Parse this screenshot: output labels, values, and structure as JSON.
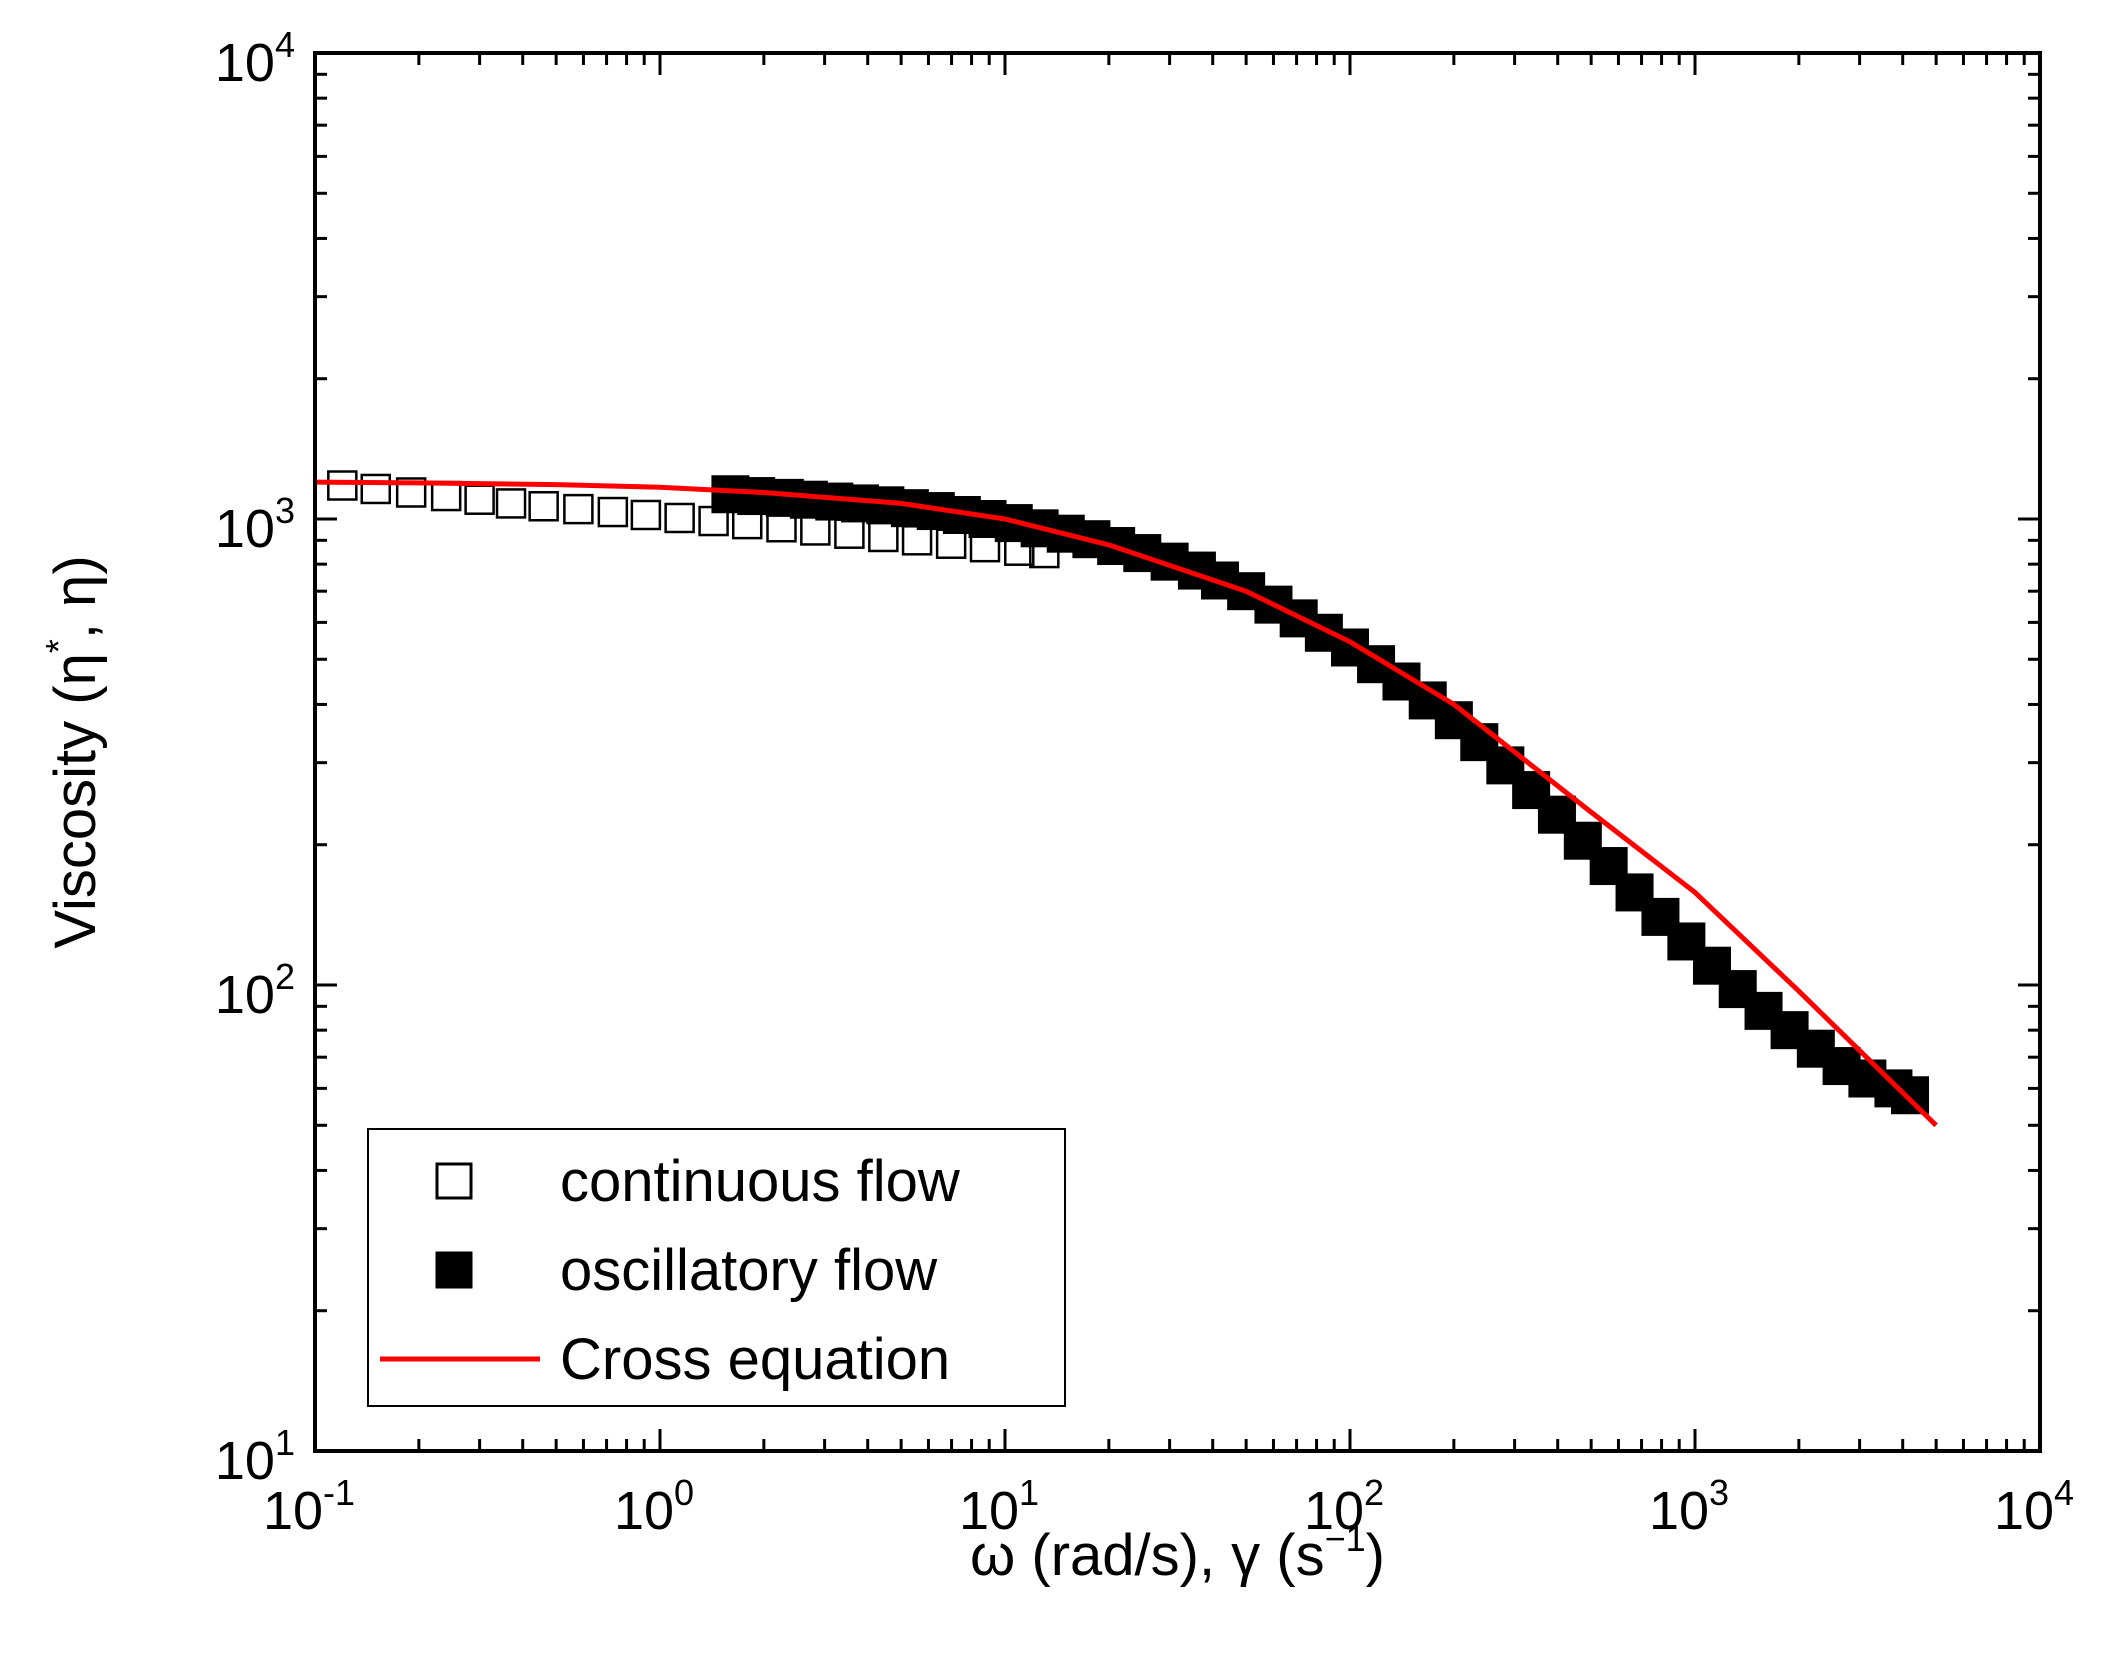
{
  "chart_data": {
    "type": "scatter",
    "x_scale": "log",
    "y_scale": "log",
    "xlim": [
      0.1,
      10000
    ],
    "ylim": [
      10,
      10000
    ],
    "xlabel": {
      "main": "ω (rad/s), γ (s",
      "sup": "−1",
      "close": ")"
    },
    "ylabel": {
      "main": "Viscosity (η",
      "sup": "*",
      "close": ", η)"
    },
    "x_ticks": [
      {
        "base": "10",
        "exp": "-1",
        "value": 0.1
      },
      {
        "base": "10",
        "exp": "0",
        "value": 1
      },
      {
        "base": "10",
        "exp": "1",
        "value": 10
      },
      {
        "base": "10",
        "exp": "2",
        "value": 100
      },
      {
        "base": "10",
        "exp": "3",
        "value": 1000
      },
      {
        "base": "10",
        "exp": "4",
        "value": 10000
      }
    ],
    "y_ticks": [
      {
        "base": "10",
        "exp": "1",
        "value": 10
      },
      {
        "base": "10",
        "exp": "2",
        "value": 100
      },
      {
        "base": "10",
        "exp": "3",
        "value": 1000
      },
      {
        "base": "10",
        "exp": "4",
        "value": 10000
      }
    ],
    "series": [
      {
        "name": "continuous flow",
        "marker": "open-square",
        "color": "#000000",
        "x": [
          0.12,
          0.15,
          0.19,
          0.24,
          0.3,
          0.37,
          0.46,
          0.58,
          0.73,
          0.91,
          1.14,
          1.43,
          1.79,
          2.25,
          2.82,
          3.54,
          4.44,
          5.56,
          6.98,
          8.75,
          11.0,
          13.0
        ],
        "y": [
          1180,
          1160,
          1140,
          1120,
          1100,
          1080,
          1065,
          1050,
          1035,
          1020,
          1005,
          990,
          975,
          960,
          945,
          930,
          915,
          900,
          885,
          870,
          855,
          845
        ]
      },
      {
        "name": "oscillatory flow",
        "marker": "filled-square",
        "color": "#000000",
        "x": [
          1.6,
          1.9,
          2.3,
          2.7,
          3.2,
          3.8,
          4.5,
          5.3,
          6.3,
          7.5,
          8.9,
          10.6,
          12.6,
          15,
          17.8,
          21,
          25,
          30,
          36,
          42,
          50,
          60,
          71,
          84,
          100,
          119,
          141,
          168,
          200,
          237,
          282,
          335,
          398,
          473,
          562,
          668,
          794,
          944,
          1120,
          1330,
          1580,
          1880,
          2240,
          2660,
          3160,
          3760,
          4200
        ],
        "y": [
          1130,
          1120,
          1110,
          1100,
          1090,
          1080,
          1070,
          1055,
          1040,
          1020,
          1000,
          980,
          955,
          930,
          905,
          875,
          845,
          810,
          775,
          738,
          700,
          655,
          612,
          570,
          530,
          488,
          448,
          408,
          370,
          332,
          296,
          262,
          232,
          204,
          180,
          158,
          140,
          124,
          110,
          98,
          88,
          80,
          73,
          67,
          63,
          60,
          58
        ]
      },
      {
        "name": "Cross equation",
        "marker": "line",
        "color": "#ff0000",
        "x": [
          0.1,
          0.2,
          0.5,
          1,
          2,
          5,
          10,
          20,
          50,
          100,
          200,
          500,
          1000,
          2000,
          5000
        ],
        "y": [
          1200,
          1195,
          1185,
          1170,
          1140,
          1080,
          1000,
          880,
          700,
          545,
          400,
          235,
          158,
          97,
          50
        ]
      }
    ],
    "legend": {
      "position": "bottom-left",
      "entries": [
        "continuous flow",
        "oscillatory flow",
        "Cross equation"
      ]
    }
  }
}
